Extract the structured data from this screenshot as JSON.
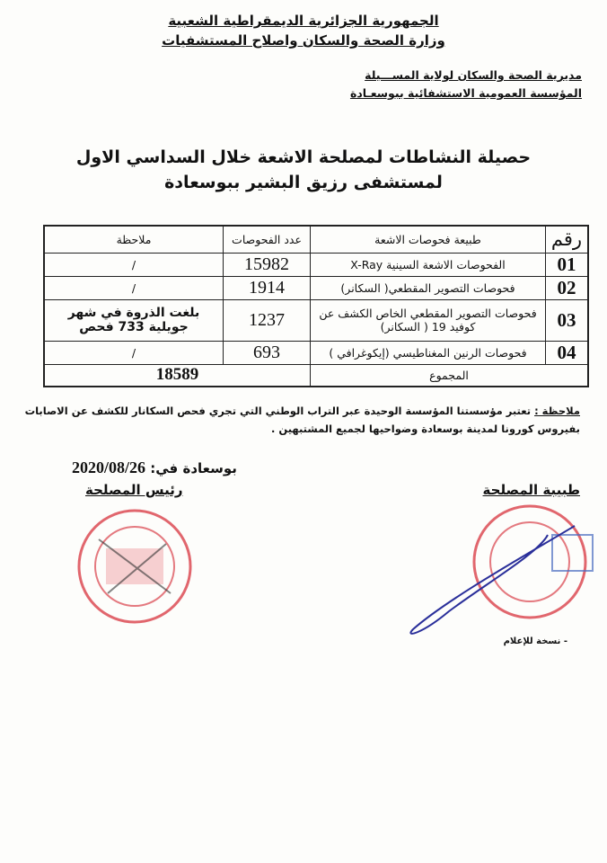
{
  "header": {
    "country": "الجمهورية الجزائرية الديمقراطية الشعبية",
    "ministry": "وزارة الصحة والسكان واصلاح المستشفيات",
    "directorate": "مديرية الصحة والسكان لولاية المســـيلة",
    "institution": "المؤسسة العمومية الاستشفائية ببوسعـادة"
  },
  "title": {
    "line1": "حصيلة النشاطات لمصلحة الاشعة خلال السداسي الاول",
    "line2": "لمستشفى رزيق البشير ببوسعادة"
  },
  "table": {
    "headers": [
      "رقم",
      "طبيعة فحوصات الاشعة",
      "عدد الفحوصات",
      "ملاحظة"
    ],
    "rows": [
      {
        "num": "01",
        "type": "الفحوصات الاشعة السينية X-Ray",
        "count": "15982",
        "remark": "/"
      },
      {
        "num": "02",
        "type": "فحوصات التصوير المقطعي( السكانر)",
        "count": "1914",
        "remark": "/"
      },
      {
        "num": "03",
        "type": "فحوصات التصوير المقطعي الخاص الكشف عن كوفيد 19 ( السكانر)",
        "count": "1237",
        "remark": "بلغت الذروة في شهر جويلية 733 فحص"
      },
      {
        "num": "04",
        "type": "فحوصات الرنين المغناطيسي (إيكوغرافي )",
        "count": "693",
        "remark": "/"
      }
    ],
    "total_label": "المجموع",
    "total_value": "18589"
  },
  "note": {
    "label": "ملاحظة :",
    "text": "تعتبر مؤسستنا المؤسسة الوحيدة عبر التراب الوطني التي تجري فحص السكانار للكشف عن الاصابات بفيروس كورونا لمدينة بوسعادة وضواحيها لجميع المشتبهين ."
  },
  "date_line": {
    "place": "بوسعادة في:",
    "date": "2020/08/26"
  },
  "signatures": {
    "left": "رئيس المصلحة",
    "right": "طبيبة المصلحة"
  },
  "footer": {
    "copy": "-   نسخة للإعلام"
  },
  "colors": {
    "stamp": "#d9404a",
    "signature_ink": "#2a2f9a"
  }
}
